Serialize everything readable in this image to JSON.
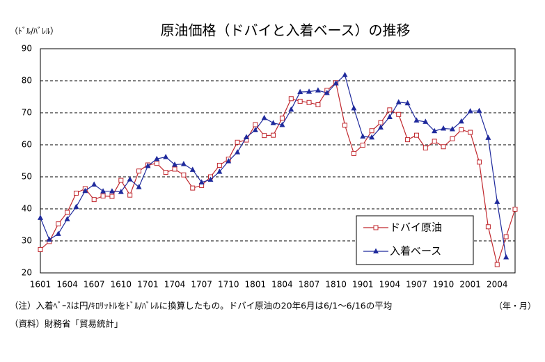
{
  "chart_data": {
    "type": "line",
    "title": "原油価格（ドバイと入着ベース）の推移",
    "y_axis_label": "（ﾄﾞﾙ/ﾊﾞﾚﾙ）",
    "x_axis_label": "（年・月）",
    "notes": [
      "（注）入着ﾍﾞｰｽは円/ｷﾛﾘｯﾄﾙをﾄﾞﾙ/ﾊﾞﾚﾙに換算したもの。ドバイ原油の20年6月は6/1～6/16の平均",
      "（資料）財務省「貿易統計」"
    ],
    "categories": [
      "1601",
      null,
      null,
      "1604",
      null,
      null,
      "1607",
      null,
      null,
      "1610",
      null,
      null,
      "1701",
      null,
      null,
      "1704",
      null,
      null,
      "1707",
      null,
      null,
      "1710",
      null,
      null,
      "1801",
      null,
      null,
      "1804",
      null,
      null,
      "1807",
      null,
      null,
      "1810",
      null,
      null,
      "1901",
      null,
      null,
      "1904",
      null,
      null,
      "1907",
      null,
      null,
      "1910",
      null,
      null,
      "2001",
      null,
      null,
      "2004",
      null,
      null
    ],
    "series": [
      {
        "name": "ドバイ原油",
        "color": "#c0272d",
        "marker": "square",
        "values": [
          27.3,
          29.8,
          35.3,
          38.9,
          44.9,
          46.3,
          42.9,
          44.0,
          43.9,
          48.9,
          44.3,
          51.8,
          53.7,
          54.2,
          51.4,
          52.4,
          50.6,
          46.5,
          47.3,
          50.0,
          53.6,
          55.5,
          60.8,
          61.5,
          66.3,
          62.9,
          63.0,
          68.3,
          74.4,
          73.6,
          73.2,
          72.5,
          77.0,
          79.4,
          66.1,
          57.3,
          59.9,
          64.4,
          66.9,
          70.9,
          69.5,
          61.6,
          63.0,
          59.0,
          61.1,
          59.4,
          61.9,
          64.7,
          63.9,
          54.6,
          34.4,
          22.6,
          31.3,
          39.9
        ]
      },
      {
        "name": "入着ベース",
        "color": "#1f2a9c",
        "marker": "triangle",
        "values": [
          37.2,
          30.4,
          32.2,
          36.8,
          40.6,
          45.6,
          47.6,
          45.5,
          45.5,
          45.3,
          49.2,
          46.8,
          53.4,
          55.6,
          56.2,
          53.8,
          54.0,
          52.2,
          48.3,
          49.1,
          51.6,
          54.9,
          57.7,
          62.4,
          64.6,
          68.4,
          66.8,
          66.2,
          71.0,
          76.5,
          76.6,
          77.0,
          76.2,
          79.2,
          81.8,
          71.4,
          62.6,
          62.3,
          65.4,
          68.7,
          73.3,
          73.0,
          67.6,
          67.2,
          64.3,
          65.1,
          64.9,
          67.3,
          70.5,
          70.6,
          62.2,
          42.2,
          24.9,
          null
        ]
      }
    ],
    "ylim": [
      20,
      90
    ],
    "yticks": [
      20,
      30,
      40,
      50,
      60,
      70,
      80,
      90
    ],
    "grid": true,
    "legend": "lower right"
  }
}
